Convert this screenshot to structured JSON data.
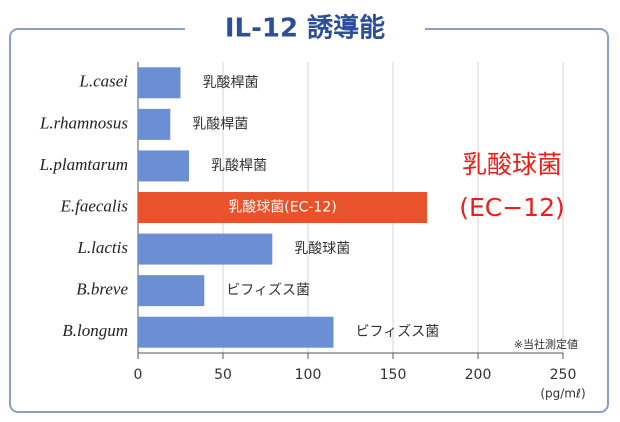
{
  "chart_data": {
    "type": "bar",
    "orientation": "horizontal",
    "title": "IL-12 誘導能",
    "categories": [
      "L.casei",
      "L.rhamnosus",
      "L.plamtarum",
      "E.faecalis",
      "L.lactis",
      "B.breve",
      "B.longum"
    ],
    "values": [
      25,
      19,
      30,
      170,
      79,
      39,
      115
    ],
    "bar_labels": [
      "乳酸桿菌",
      "乳酸桿菌",
      "乳酸桿菌",
      "乳酸球菌(EC-12)",
      "乳酸球菌",
      "ビフィズス菌",
      "ビフィズス菌"
    ],
    "color": "#6b8fd2",
    "highlight_index": 3,
    "highlight_color": "#e9532b",
    "annotation": [
      "乳酸球菌",
      "(EC−12)"
    ],
    "annotation_color": "#e8201c",
    "note": "※当社測定値",
    "x_unit": "(pg/mℓ)",
    "xlim": [
      0,
      250
    ],
    "xticks": [
      0,
      50,
      100,
      150,
      200,
      250
    ],
    "grid": true
  }
}
